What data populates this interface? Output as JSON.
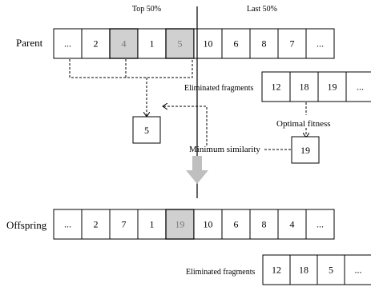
{
  "header": {
    "top_label": "Top 50%",
    "last_label": "Last 50%"
  },
  "parent": {
    "label": "Parent",
    "cells": [
      {
        "text": "...",
        "highlight": false
      },
      {
        "text": "2",
        "highlight": false
      },
      {
        "text": "4",
        "highlight": true
      },
      {
        "text": "1",
        "highlight": false
      },
      {
        "text": "5",
        "highlight": true
      },
      {
        "text": "10",
        "highlight": false
      },
      {
        "text": "6",
        "highlight": false
      },
      {
        "text": "8",
        "highlight": false
      },
      {
        "text": "7",
        "highlight": false
      },
      {
        "text": "...",
        "highlight": false
      }
    ]
  },
  "eliminated_top": {
    "label": "Eliminated fragments",
    "cells": [
      "12",
      "18",
      "19",
      "..."
    ]
  },
  "selected_box": {
    "text": "5"
  },
  "optimal": {
    "label": "Optimal fitness",
    "value": "19"
  },
  "similarity": {
    "label": "Minimum similarity"
  },
  "offspring": {
    "label": "Offspring",
    "cells": [
      {
        "text": "...",
        "highlight": false
      },
      {
        "text": "2",
        "highlight": false
      },
      {
        "text": "7",
        "highlight": false
      },
      {
        "text": "1",
        "highlight": false
      },
      {
        "text": "19",
        "highlight": true
      },
      {
        "text": "10",
        "highlight": false
      },
      {
        "text": "6",
        "highlight": false
      },
      {
        "text": "8",
        "highlight": false
      },
      {
        "text": "4",
        "highlight": false
      },
      {
        "text": "..."
      }
    ]
  },
  "eliminated_bottom": {
    "label": "Eliminated fragments",
    "cells": [
      "12",
      "18",
      "5",
      "..."
    ]
  },
  "colors": {
    "highlight_fill": "#d0d0d0",
    "highlight_text": "#777777",
    "arrow_fill": "#bfbfbf",
    "stroke": "#000000"
  }
}
